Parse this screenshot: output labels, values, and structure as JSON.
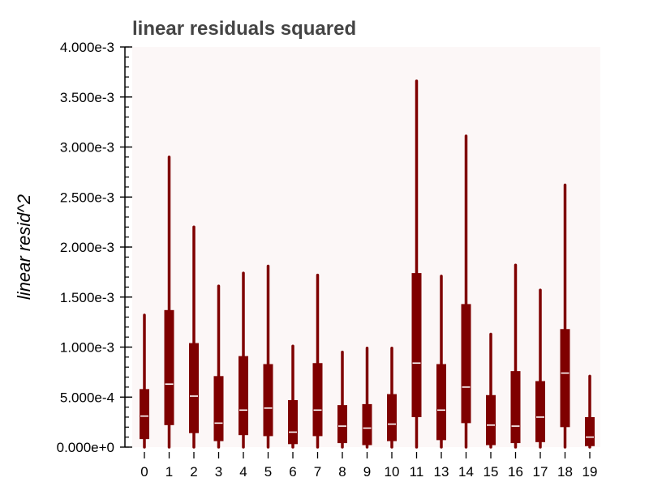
{
  "chart_data": {
    "type": "box",
    "title": "linear residuals squared",
    "xlabel": "",
    "ylabel": "linear resid^2",
    "ylim": [
      0,
      0.004
    ],
    "y_ticks": [
      "0.000e+0",
      "5.000e-4",
      "1.000e-3",
      "1.500e-3",
      "2.000e-3",
      "2.500e-3",
      "3.000e-3",
      "3.500e-3",
      "4.000e-3"
    ],
    "y_tick_values": [
      0,
      0.0005,
      0.001,
      0.0015,
      0.002,
      0.0025,
      0.003,
      0.0035,
      0.004
    ],
    "categories": [
      "0",
      "1",
      "2",
      "3",
      "4",
      "5",
      "6",
      "7",
      "8",
      "9",
      "10",
      "11",
      "13",
      "14",
      "15",
      "16",
      "17",
      "18",
      "19"
    ],
    "boxes": [
      {
        "min": 0.0,
        "q1": 8e-05,
        "median": 0.00031,
        "q3": 0.00058,
        "max": 0.00132
      },
      {
        "min": 0.0,
        "q1": 0.00022,
        "median": 0.00063,
        "q3": 0.00137,
        "max": 0.0029
      },
      {
        "min": 0.0,
        "q1": 0.00014,
        "median": 0.00051,
        "q3": 0.00104,
        "max": 0.0022
      },
      {
        "min": 0.0,
        "q1": 6e-05,
        "median": 0.00024,
        "q3": 0.00071,
        "max": 0.00161
      },
      {
        "min": 0.0,
        "q1": 0.00012,
        "median": 0.00037,
        "q3": 0.00091,
        "max": 0.00174
      },
      {
        "min": 0.0,
        "q1": 0.00011,
        "median": 0.00039,
        "q3": 0.00083,
        "max": 0.00181
      },
      {
        "min": 0.0,
        "q1": 3e-05,
        "median": 0.00015,
        "q3": 0.00047,
        "max": 0.00101
      },
      {
        "min": 0.0,
        "q1": 0.00011,
        "median": 0.00037,
        "q3": 0.00084,
        "max": 0.00172
      },
      {
        "min": 0.0,
        "q1": 4e-05,
        "median": 0.00021,
        "q3": 0.00042,
        "max": 0.00095
      },
      {
        "min": 0.0,
        "q1": 2e-05,
        "median": 0.00019,
        "q3": 0.00043,
        "max": 0.00099
      },
      {
        "min": 0.0,
        "q1": 6e-05,
        "median": 0.00023,
        "q3": 0.00053,
        "max": 0.00099
      },
      {
        "min": 0.0,
        "q1": 0.0003,
        "median": 0.00084,
        "q3": 0.00174,
        "max": 0.00366
      },
      {
        "min": 0.0,
        "q1": 7e-05,
        "median": 0.00037,
        "q3": 0.00083,
        "max": 0.00171
      },
      {
        "min": 0.0,
        "q1": 0.00024,
        "median": 0.0006,
        "q3": 0.00143,
        "max": 0.00311
      },
      {
        "min": 0.0,
        "q1": 2e-05,
        "median": 0.00022,
        "q3": 0.00052,
        "max": 0.00113
      },
      {
        "min": 0.0,
        "q1": 4e-05,
        "median": 0.00021,
        "q3": 0.00076,
        "max": 0.00182
      },
      {
        "min": 0.0,
        "q1": 5e-05,
        "median": 0.0003,
        "q3": 0.00066,
        "max": 0.00157
      },
      {
        "min": 0.0,
        "q1": 0.0002,
        "median": 0.00074,
        "q3": 0.00118,
        "max": 0.00262
      },
      {
        "min": 0.0,
        "q1": 1e-05,
        "median": 0.0001,
        "q3": 0.0003,
        "max": 0.00071
      }
    ],
    "grid": false,
    "colors": {
      "box": "#7f0000",
      "median": "#ffffff",
      "plot_background": "#fcf7f7",
      "title": "#444444"
    }
  }
}
